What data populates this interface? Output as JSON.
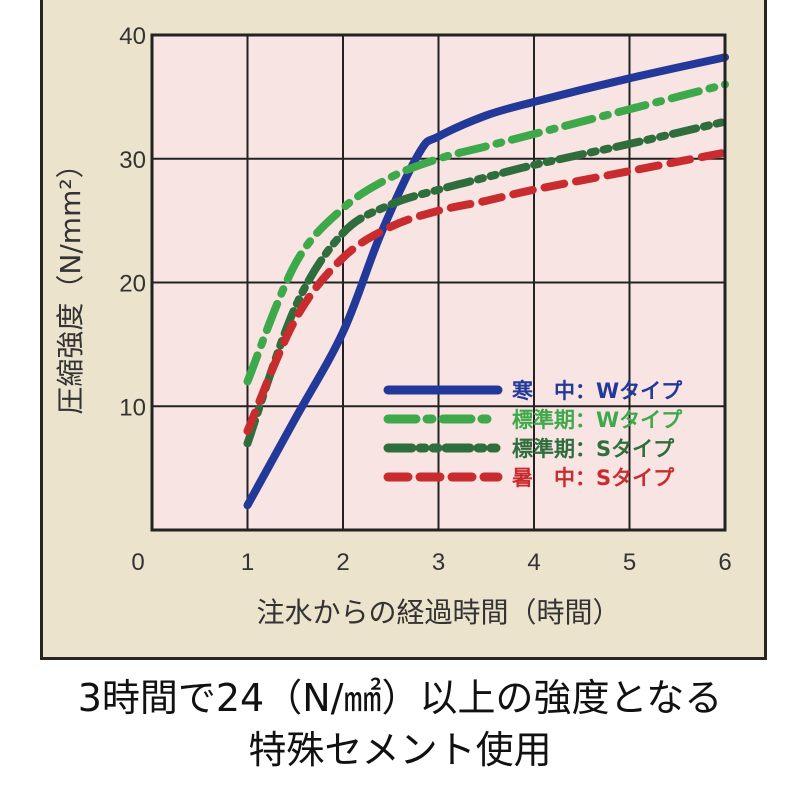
{
  "chart_data": {
    "type": "line",
    "title": "",
    "xlabel": "注水からの経過時間（時間）",
    "ylabel": "圧縮強度（N/mm²）",
    "xlim": [
      0,
      6
    ],
    "ylim": [
      0,
      40
    ],
    "x_ticks": [
      "0",
      "1",
      "2",
      "3",
      "4",
      "5",
      "6"
    ],
    "y_ticks": [
      "10",
      "20",
      "30",
      "40"
    ],
    "grid": true,
    "legend_position": "lower-right",
    "series": [
      {
        "name": "寒　中：Wタイプ",
        "color": "#23399a",
        "dash": "solid",
        "x": [
          1,
          1.5,
          2,
          2.4,
          2.8,
          3,
          3.5,
          4,
          5,
          6
        ],
        "y": [
          2,
          9,
          16,
          24,
          30.5,
          31.8,
          33.5,
          34.6,
          36.5,
          38.2
        ]
      },
      {
        "name": "標準期：Wタイプ",
        "color": "#3ea94a",
        "dash": "dashdot",
        "x": [
          1,
          1.5,
          2,
          2.5,
          3,
          3.5,
          4,
          5,
          6
        ],
        "y": [
          12,
          21.5,
          26,
          28.5,
          30,
          31,
          32,
          34,
          36
        ]
      },
      {
        "name": "標準期：Sタイプ",
        "color": "#2f6e3c",
        "dash": "dashdotdot",
        "x": [
          1,
          1.5,
          2,
          2.5,
          3,
          3.5,
          4,
          5,
          6
        ],
        "y": [
          7,
          18,
          24,
          26.3,
          27.5,
          28.5,
          29.5,
          31.2,
          33
        ]
      },
      {
        "name": "暑　中：Sタイプ",
        "color": "#c92c2e",
        "dash": "dashed",
        "x": [
          1,
          1.5,
          2,
          2.5,
          3,
          3.5,
          4,
          5,
          6
        ],
        "y": [
          8,
          17,
          22,
          24.5,
          25.8,
          26.6,
          27.5,
          29,
          30.5
        ]
      }
    ]
  },
  "caption": {
    "line1": "3時間で24（N/㎟）以上の強度となる",
    "line2": "特殊セメント使用"
  }
}
